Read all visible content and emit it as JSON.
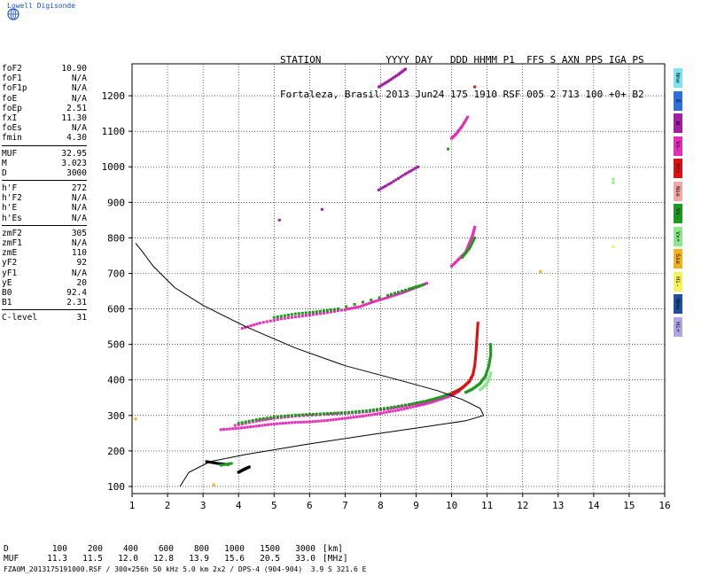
{
  "brand": "Lowell Digisonde",
  "header": {
    "line1": "STATION           YYYY DAY   DDD HHMM P1  FFS S AXN PPS IGA PS",
    "line2": "Fortaleza, Brasil 2013 Jun24 175 1910 RSF 005 2 713 100 +0+ B2"
  },
  "params": [
    {
      "k": "foF2",
      "v": "10.90"
    },
    {
      "k": "foF1",
      "v": "N/A"
    },
    {
      "k": "foF1p",
      "v": "N/A"
    },
    {
      "k": "foE",
      "v": "N/A"
    },
    {
      "k": "foEp",
      "v": "2.51"
    },
    {
      "k": "fxI",
      "v": "11.30"
    },
    {
      "k": "foEs",
      "v": "N/A"
    },
    {
      "k": "fmin",
      "v": "4.30"
    },
    {
      "sep": true
    },
    {
      "k": "MUF",
      "v": "32.95"
    },
    {
      "k": "M",
      "v": "3.023"
    },
    {
      "k": "D",
      "v": "3000"
    },
    {
      "sep": true
    },
    {
      "k": "h'F",
      "v": "272"
    },
    {
      "k": "h'F2",
      "v": "N/A"
    },
    {
      "k": "h'E",
      "v": "N/A"
    },
    {
      "k": "h'Es",
      "v": "N/A"
    },
    {
      "sep": true
    },
    {
      "k": "zmF2",
      "v": "305"
    },
    {
      "k": "zmF1",
      "v": "N/A"
    },
    {
      "k": "zmE",
      "v": "110"
    },
    {
      "k": "yF2",
      "v": "92"
    },
    {
      "k": "yF1",
      "v": "N/A"
    },
    {
      "k": "yE",
      "v": "20"
    },
    {
      "k": "B0",
      "v": "92.4"
    },
    {
      "k": "B1",
      "v": "2.31"
    },
    {
      "sep": true
    },
    {
      "k": "C-level",
      "v": "31"
    }
  ],
  "legend": [
    {
      "label": "Nne",
      "color": "#7fe3f2"
    },
    {
      "label": "E",
      "color": "#2f6fd9"
    },
    {
      "label": "W",
      "color": "#a020a0"
    },
    {
      "label": "Vo-",
      "color": "#e52fb8"
    },
    {
      "label": "Vo+",
      "color": "#e01010"
    },
    {
      "label": "Nse",
      "color": "#f3a8a8"
    },
    {
      "label": "Vx-",
      "color": "#1c9a1c"
    },
    {
      "label": "Vx+",
      "color": "#8de88d"
    },
    {
      "label": "Sse",
      "color": "#f3b21c"
    },
    {
      "label": "Hi-",
      "color": "#f3f35a"
    },
    {
      "label": "Nnw",
      "color": "#1f4f9f"
    },
    {
      "label": "Hi+",
      "color": "#b0a8e6"
    }
  ],
  "d_table": {
    "d_label": "D",
    "muf_label": "MUF",
    "d_values": [
      "100",
      "200",
      "400",
      "600",
      "800",
      "1000",
      "1500",
      "3000"
    ],
    "d_unit": "[km]",
    "muf_values": [
      "11.3",
      "11.5",
      "12.0",
      "12.8",
      "13.9",
      "15.6",
      "20.5",
      "33.0"
    ],
    "muf_unit": "[MHz]"
  },
  "footer": "FZA0M_2013175191000.RSF / 300×256h 50 kHz 5.0 km 2x2 / DPS-4 (904-904)  3.9 S 321.6 E",
  "chart_data": {
    "type": "scatter",
    "xlim": [
      1,
      16
    ],
    "ylim": [
      80,
      1290
    ],
    "xticks": [
      1,
      2,
      3,
      4,
      5,
      6,
      7,
      8,
      9,
      10,
      11,
      12,
      13,
      14,
      15,
      16
    ],
    "yticks": [
      100,
      200,
      300,
      400,
      500,
      600,
      700,
      800,
      900,
      1000,
      1100,
      1200
    ],
    "grid": true,
    "profile": {
      "color": "#000000",
      "points": [
        [
          2.35,
          100
        ],
        [
          2.6,
          140
        ],
        [
          3.2,
          170
        ],
        [
          4.2,
          190
        ],
        [
          6.0,
          220
        ],
        [
          8.0,
          250
        ],
        [
          9.4,
          270
        ],
        [
          10.4,
          285
        ],
        [
          10.9,
          300
        ],
        [
          10.8,
          320
        ],
        [
          10.3,
          345
        ],
        [
          9.6,
          370
        ],
        [
          8.5,
          400
        ],
        [
          7.0,
          440
        ],
        [
          5.6,
          490
        ],
        [
          4.2,
          550
        ],
        [
          3.0,
          610
        ],
        [
          2.2,
          660
        ],
        [
          1.6,
          720
        ],
        [
          1.3,
          760
        ],
        [
          1.1,
          785
        ]
      ]
    },
    "traces": [
      {
        "color": "#e52fb8",
        "points": [
          [
            3.5,
            260
          ],
          [
            4.0,
            264
          ],
          [
            4.5,
            270
          ],
          [
            5.0,
            276
          ],
          [
            5.5,
            280
          ],
          [
            6.0,
            282
          ],
          [
            6.5,
            286
          ],
          [
            7.0,
            292
          ],
          [
            7.5,
            298
          ],
          [
            8.0,
            306
          ],
          [
            8.5,
            315
          ],
          [
            9.0,
            326
          ],
          [
            9.4,
            336
          ],
          [
            9.7,
            346
          ],
          [
            10.0,
            356
          ],
          [
            10.2,
            368
          ]
        ]
      },
      {
        "color": "#e52fb8",
        "points": [
          [
            3.9,
            272
          ],
          [
            4.5,
            284
          ],
          [
            5.0,
            292
          ],
          [
            5.6,
            298
          ],
          [
            6.3,
            302
          ],
          [
            7.0,
            306
          ],
          [
            7.6,
            310
          ],
          [
            8.2,
            318
          ],
          [
            8.7,
            327
          ],
          [
            9.2,
            337
          ],
          [
            9.6,
            348
          ],
          [
            9.95,
            360
          ],
          [
            10.2,
            372
          ]
        ]
      },
      {
        "color": "#1c9a1c",
        "points": [
          [
            4.0,
            278
          ],
          [
            4.6,
            290
          ],
          [
            5.2,
            298
          ],
          [
            5.8,
            302
          ],
          [
            6.4,
            305
          ],
          [
            7.0,
            308
          ],
          [
            7.6,
            313
          ],
          [
            8.2,
            321
          ],
          [
            8.8,
            331
          ],
          [
            9.3,
            341
          ],
          [
            9.7,
            352
          ],
          [
            10.05,
            364
          ],
          [
            10.3,
            378
          ]
        ]
      },
      {
        "color": "#e01010",
        "points": [
          [
            10.0,
            360
          ],
          [
            10.2,
            370
          ],
          [
            10.35,
            382
          ],
          [
            10.5,
            396
          ],
          [
            10.6,
            415
          ],
          [
            10.65,
            440
          ],
          [
            10.68,
            470
          ],
          [
            10.7,
            500
          ],
          [
            10.72,
            530
          ],
          [
            10.74,
            560
          ]
        ]
      },
      {
        "color": "#1c9a1c",
        "points": [
          [
            10.4,
            365
          ],
          [
            10.6,
            375
          ],
          [
            10.8,
            390
          ],
          [
            10.95,
            410
          ],
          [
            11.05,
            440
          ],
          [
            11.1,
            470
          ],
          [
            11.1,
            500
          ]
        ]
      },
      {
        "color": "#8de88d",
        "points": [
          [
            10.8,
            372
          ],
          [
            10.95,
            385
          ],
          [
            11.05,
            400
          ],
          [
            11.1,
            420
          ]
        ]
      },
      {
        "color": "#e52fb8",
        "points": [
          [
            4.1,
            545
          ],
          [
            4.6,
            560
          ],
          [
            5.2,
            572
          ],
          [
            5.8,
            580
          ],
          [
            6.4,
            588
          ],
          [
            7.0,
            598
          ],
          [
            7.4,
            606
          ],
          [
            7.8,
            620
          ],
          [
            8.2,
            632
          ],
          [
            8.6,
            645
          ],
          [
            9.0,
            660
          ],
          [
            9.3,
            672
          ]
        ]
      },
      {
        "color": "#1c9a1c",
        "points": [
          [
            5.0,
            576
          ],
          [
            5.6,
            586
          ],
          [
            6.2,
            592
          ],
          [
            6.8,
            600
          ],
          [
            8.2,
            638
          ],
          [
            8.8,
            656
          ],
          [
            9.2,
            668
          ]
        ]
      },
      {
        "color": "#e52fb8",
        "points": [
          [
            10.0,
            720
          ],
          [
            10.2,
            740
          ],
          [
            10.4,
            760
          ],
          [
            10.5,
            785
          ],
          [
            10.6,
            810
          ],
          [
            10.65,
            830
          ]
        ]
      },
      {
        "color": "#1c9a1c",
        "points": [
          [
            10.3,
            745
          ],
          [
            10.5,
            770
          ],
          [
            10.65,
            800
          ]
        ]
      },
      {
        "color": "#a020a0",
        "points": [
          [
            7.95,
            935
          ],
          [
            8.3,
            955
          ],
          [
            8.7,
            980
          ],
          [
            9.05,
            1000
          ]
        ]
      },
      {
        "color": "#e52fb8",
        "points": [
          [
            10.0,
            1080
          ],
          [
            10.15,
            1095
          ],
          [
            10.3,
            1115
          ],
          [
            10.45,
            1140
          ]
        ]
      },
      {
        "color": "#a020a0",
        "points": [
          [
            7.95,
            1225
          ],
          [
            8.2,
            1240
          ],
          [
            8.5,
            1260
          ],
          [
            8.7,
            1275
          ]
        ]
      },
      {
        "color": "#000000",
        "points": [
          [
            3.1,
            170
          ],
          [
            3.4,
            165
          ],
          [
            3.7,
            162
          ]
        ]
      },
      {
        "color": "#000000",
        "points": [
          [
            4.0,
            140
          ],
          [
            4.15,
            148
          ],
          [
            4.3,
            155
          ]
        ]
      },
      {
        "color": "#1c9a1c",
        "points": [
          [
            3.5,
            160
          ],
          [
            3.8,
            165
          ]
        ]
      }
    ],
    "dots": [
      {
        "x": 5.15,
        "y": 850,
        "color": "#a020a0"
      },
      {
        "x": 6.35,
        "y": 880,
        "color": "#a020a0"
      },
      {
        "x": 10.65,
        "y": 1225,
        "color": "#e01010"
      },
      {
        "x": 14.55,
        "y": 965,
        "color": "#8de88d"
      },
      {
        "x": 14.55,
        "y": 955,
        "color": "#8de88d"
      },
      {
        "x": 14.55,
        "y": 775,
        "color": "#f3f35a"
      },
      {
        "x": 12.5,
        "y": 705,
        "color": "#f3b21c"
      },
      {
        "x": 1.1,
        "y": 290,
        "color": "#f3b21c"
      },
      {
        "x": 3.3,
        "y": 105,
        "color": "#f3b21c"
      },
      {
        "x": 9.9,
        "y": 1050,
        "color": "#1c9a1c"
      }
    ]
  }
}
